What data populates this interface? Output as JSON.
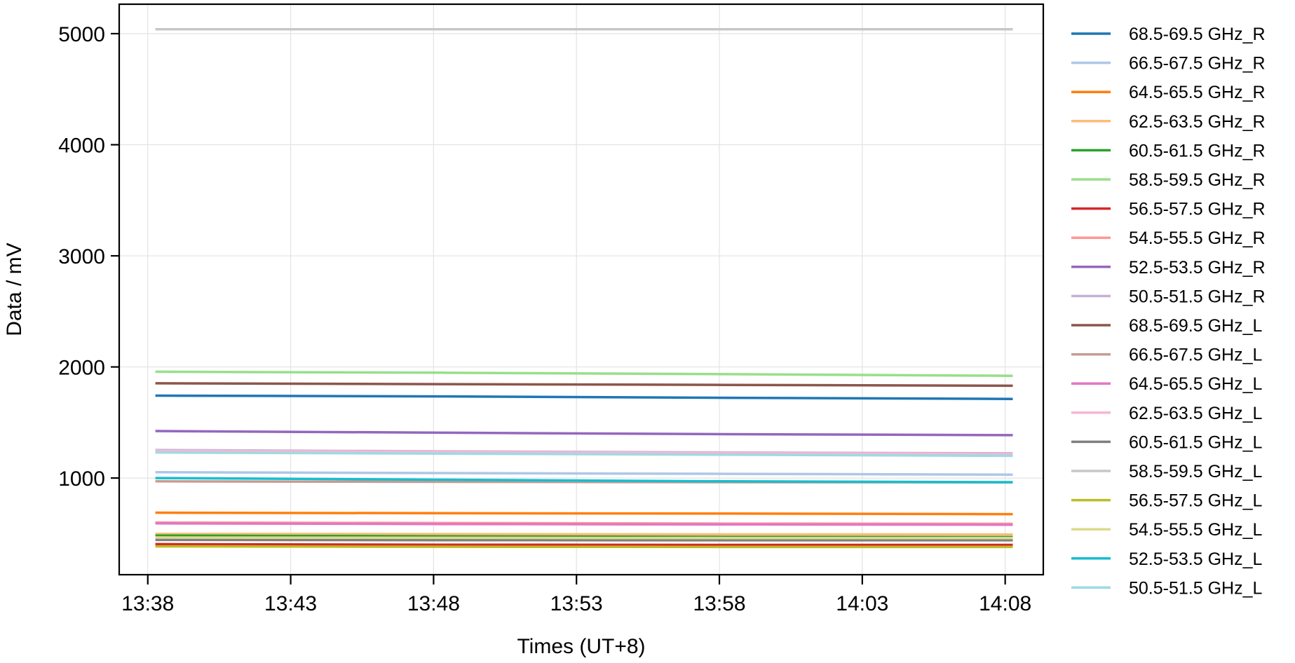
{
  "chart_data": {
    "type": "line",
    "xlabel": "Times (UT+8)",
    "ylabel": "Data / mV",
    "x_ticks": [
      "13:38",
      "13:43",
      "13:48",
      "13:53",
      "13:58",
      "14:03",
      "14:08"
    ],
    "y_ticks": [
      1000,
      2000,
      3000,
      4000,
      5000
    ],
    "ylim": [
      130,
      5265
    ],
    "xlim": [
      "13:37:00",
      "14:09:20"
    ],
    "grid": true,
    "legend_position": "right-outside",
    "x": [
      "13:38:16",
      "13:48:16",
      "13:58:16",
      "14:08:16"
    ],
    "series": [
      {
        "name": "68.5-69.5 GHz_R",
        "color": "#1f77b4",
        "values": [
          1742,
          1735,
          1722,
          1712
        ]
      },
      {
        "name": "66.5-67.5 GHz_R",
        "color": "#aec7e8",
        "values": [
          1052,
          1045,
          1038,
          1030
        ]
      },
      {
        "name": "64.5-65.5 GHz_R",
        "color": "#ff7f0e",
        "values": [
          688,
          683,
          680,
          675
        ]
      },
      {
        "name": "62.5-63.5 GHz_R",
        "color": "#ffbb78",
        "values": [
          497,
          495,
          493,
          492
        ]
      },
      {
        "name": "60.5-61.5 GHz_R",
        "color": "#2ca02c",
        "values": [
          482,
          476,
          470,
          468
        ]
      },
      {
        "name": "58.5-59.5 GHz_R",
        "color": "#98df8a",
        "values": [
          1957,
          1948,
          1935,
          1920
        ]
      },
      {
        "name": "56.5-57.5 GHz_R",
        "color": "#d62728",
        "values": [
          405,
          400,
          398,
          398
        ]
      },
      {
        "name": "54.5-55.5 GHz_R",
        "color": "#ff9896",
        "values": [
          600,
          595,
          590,
          588
        ]
      },
      {
        "name": "52.5-53.5 GHz_R",
        "color": "#9467bd",
        "values": [
          1423,
          1408,
          1395,
          1386
        ]
      },
      {
        "name": "50.5-51.5 GHz_R",
        "color": "#c5b0d5",
        "values": [
          1252,
          1240,
          1230,
          1222
        ]
      },
      {
        "name": "68.5-69.5 GHz_L",
        "color": "#8c564b",
        "values": [
          1853,
          1845,
          1838,
          1831
        ]
      },
      {
        "name": "66.5-67.5 GHz_L",
        "color": "#c49c94",
        "values": [
          970,
          966,
          963,
          961
        ]
      },
      {
        "name": "64.5-65.5 GHz_L",
        "color": "#e377c2",
        "values": [
          592,
          586,
          582,
          580
        ]
      },
      {
        "name": "62.5-63.5 GHz_L",
        "color": "#f7b6d2",
        "values": [
          1245,
          1235,
          1225,
          1215
        ]
      },
      {
        "name": "60.5-61.5 GHz_L",
        "color": "#7f7f7f",
        "values": [
          443,
          441,
          440,
          440
        ]
      },
      {
        "name": "58.5-59.5 GHz_L",
        "color": "#c7c7c7",
        "values": [
          5040,
          5040,
          5040,
          5040
        ]
      },
      {
        "name": "56.5-57.5 GHz_L",
        "color": "#bcbd22",
        "values": [
          385,
          382,
          380,
          380
        ]
      },
      {
        "name": "54.5-55.5 GHz_L",
        "color": "#dbdb8d",
        "values": [
          465,
          462,
          460,
          460
        ]
      },
      {
        "name": "52.5-53.5 GHz_L",
        "color": "#17becf",
        "values": [
          1000,
          985,
          970,
          963
        ]
      },
      {
        "name": "50.5-51.5 GHz_L",
        "color": "#9edae5",
        "values": [
          1230,
          1220,
          1210,
          1200
        ]
      }
    ]
  }
}
